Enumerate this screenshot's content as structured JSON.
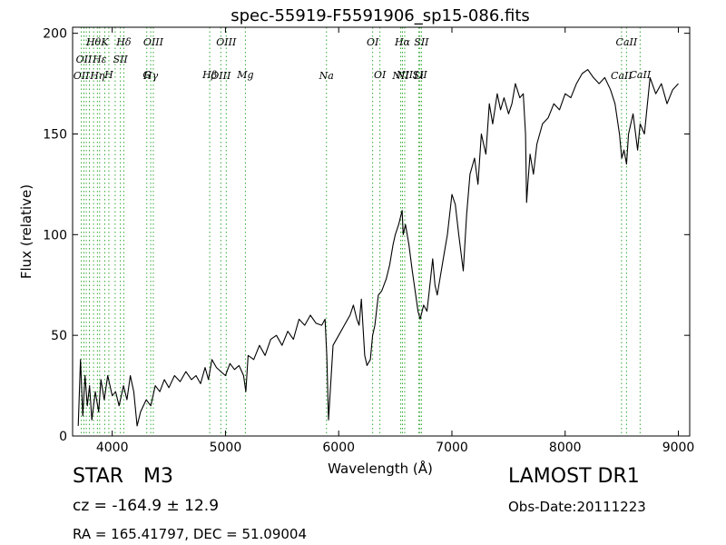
{
  "chart_data": {
    "type": "line",
    "title": "spec-55919-F5591906_sp15-086.fits",
    "xlabel": "Wavelength (Å)",
    "ylabel": "Flux (relative)",
    "xlim": [
      3650,
      9100
    ],
    "ylim": [
      0,
      203
    ],
    "xticks": [
      4000,
      5000,
      6000,
      7000,
      8000,
      9000
    ],
    "yticks": [
      0,
      50,
      100,
      150,
      200
    ],
    "grid": false,
    "line_color": "#000000",
    "line_marker_color": "#33aa33",
    "series": [
      {
        "x": [
          3700,
          3720,
          3740,
          3760,
          3780,
          3800,
          3820,
          3850,
          3880,
          3900,
          3930,
          3960,
          4000,
          4030,
          4060,
          4100,
          4130,
          4160,
          4190,
          4220,
          4250,
          4300,
          4340,
          4380,
          4420,
          4460,
          4500,
          4550,
          4600,
          4650,
          4700,
          4740,
          4780,
          4820,
          4850,
          4880,
          4920,
          4960,
          5000,
          5040,
          5080,
          5120,
          5160,
          5180,
          5200,
          5250,
          5300,
          5350,
          5400,
          5450,
          5500,
          5550,
          5600,
          5650,
          5700,
          5750,
          5800,
          5850,
          5880,
          5895,
          5910,
          5950,
          6000,
          6050,
          6100,
          6130,
          6160,
          6180,
          6200,
          6230,
          6250,
          6280,
          6300,
          6320,
          6350,
          6380,
          6420,
          6450,
          6480,
          6500,
          6530,
          6560,
          6570,
          6590,
          6620,
          6650,
          6680,
          6700,
          6720,
          6750,
          6780,
          6800,
          6830,
          6850,
          6870,
          6900,
          6930,
          6960,
          7000,
          7030,
          7060,
          7100,
          7130,
          7160,
          7200,
          7230,
          7260,
          7300,
          7330,
          7360,
          7400,
          7430,
          7460,
          7500,
          7530,
          7560,
          7600,
          7630,
          7650,
          7660,
          7670,
          7690,
          7720,
          7750,
          7800,
          7850,
          7900,
          7950,
          8000,
          8050,
          8100,
          8150,
          8200,
          8250,
          8300,
          8350,
          8400,
          8440,
          8480,
          8500,
          8520,
          8542,
          8560,
          8600,
          8640,
          8662,
          8700,
          8750,
          8800,
          8850,
          8900,
          8950,
          9000
        ],
        "y": [
          5,
          38,
          10,
          30,
          15,
          25,
          8,
          22,
          12,
          28,
          18,
          30,
          20,
          22,
          15,
          25,
          18,
          30,
          22,
          5,
          12,
          18,
          15,
          25,
          22,
          28,
          24,
          30,
          27,
          32,
          28,
          30,
          26,
          34,
          28,
          38,
          34,
          32,
          30,
          36,
          33,
          35,
          30,
          22,
          40,
          38,
          45,
          40,
          48,
          50,
          45,
          52,
          48,
          58,
          55,
          60,
          56,
          55,
          58,
          40,
          8,
          45,
          50,
          55,
          60,
          65,
          58,
          55,
          68,
          40,
          35,
          38,
          50,
          55,
          70,
          72,
          78,
          85,
          95,
          100,
          105,
          112,
          100,
          105,
          95,
          82,
          70,
          62,
          58,
          65,
          62,
          72,
          88,
          75,
          70,
          80,
          90,
          100,
          120,
          115,
          100,
          82,
          110,
          130,
          138,
          125,
          150,
          140,
          165,
          155,
          170,
          162,
          168,
          160,
          165,
          175,
          168,
          170,
          150,
          116,
          125,
          140,
          130,
          145,
          155,
          158,
          165,
          162,
          170,
          168,
          175,
          180,
          182,
          178,
          175,
          178,
          172,
          165,
          150,
          138,
          142,
          135,
          150,
          160,
          142,
          155,
          150,
          178,
          170,
          175,
          165,
          172,
          175
        ]
      }
    ],
    "lines": [
      {
        "w": 3727,
        "label": "OII",
        "row": 2
      },
      {
        "w": 3750,
        "label": "OII",
        "row": 1
      },
      {
        "w": 3771,
        "label": "",
        "row": 0
      },
      {
        "w": 3798,
        "label": "",
        "row": 0
      },
      {
        "w": 3835,
        "label": "Hθ",
        "row": 0
      },
      {
        "w": 3869,
        "label": "Hη",
        "row": 2
      },
      {
        "w": 3889,
        "label": "Hε",
        "row": 1
      },
      {
        "w": 3934,
        "label": "K",
        "row": 0
      },
      {
        "w": 3970,
        "label": "H",
        "row": 3
      },
      {
        "w": 4026,
        "label": "",
        "row": 0
      },
      {
        "w": 4072,
        "label": "SII",
        "row": 1
      },
      {
        "w": 4102,
        "label": "Hδ",
        "row": 0
      },
      {
        "w": 4305,
        "label": "G",
        "row": 3
      },
      {
        "w": 4340,
        "label": "Hγ",
        "row": 2
      },
      {
        "w": 4363,
        "label": "OIII",
        "row": 0
      },
      {
        "w": 4861,
        "label": "Hβ",
        "row": 3
      },
      {
        "w": 4959,
        "label": "OIII",
        "row": 2
      },
      {
        "w": 5007,
        "label": "OIII",
        "row": 0
      },
      {
        "w": 5176,
        "label": "Mg",
        "row": 3
      },
      {
        "w": 5892,
        "label": "Na",
        "row": 2
      },
      {
        "w": 6300,
        "label": "OI",
        "row": 0
      },
      {
        "w": 6364,
        "label": "OI",
        "row": 3
      },
      {
        "w": 6548,
        "label": "NII",
        "row": 2
      },
      {
        "w": 6563,
        "label": "Hα",
        "row": 0
      },
      {
        "w": 6583,
        "label": "NII",
        "row": 3
      },
      {
        "w": 6717,
        "label": "SII",
        "row": 3
      },
      {
        "w": 6731,
        "label": "SII",
        "row": 0
      },
      {
        "w": 6707,
        "label": "Li",
        "row": 2
      },
      {
        "w": 8498,
        "label": "CaII",
        "row": 2
      },
      {
        "w": 8542,
        "label": "CaII",
        "row": 0
      },
      {
        "w": 8662,
        "label": "CaII",
        "row": 3
      }
    ]
  },
  "info": {
    "star_type": "STAR",
    "star_subclass": "M3",
    "cz_text": "cz = -164.9  ± 12.9",
    "radec_text": "RA = 165.41797, DEC = 51.09004",
    "survey": "LAMOST DR1",
    "obs_date": "Obs-Date:20111223"
  }
}
